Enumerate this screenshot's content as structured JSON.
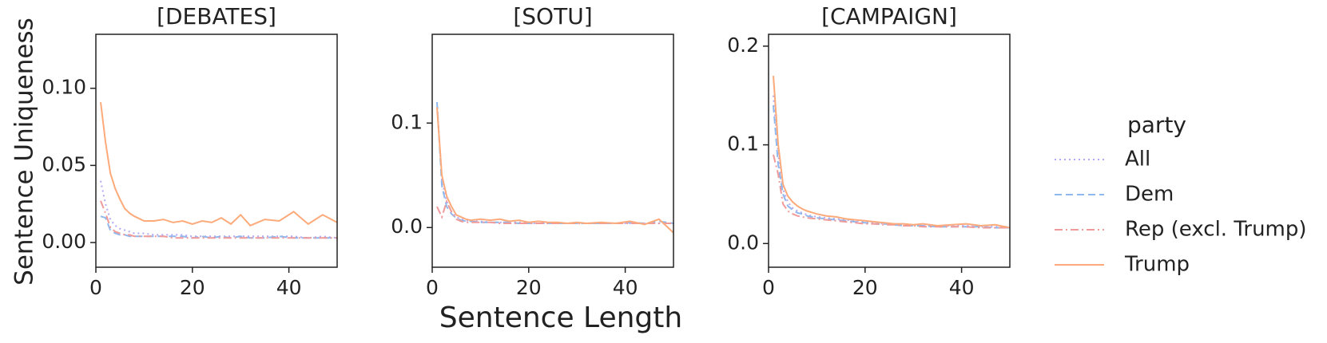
{
  "figure": {
    "xlabel": "Sentence Length",
    "ylabel": "Sentence Uniqueness",
    "legend_title": "party"
  },
  "chart_data": [
    {
      "type": "line",
      "title": "[DEBATES]",
      "x": [
        1,
        2,
        3,
        4,
        5,
        6,
        7,
        8,
        10,
        12,
        14,
        16,
        18,
        20,
        22,
        24,
        26,
        28,
        30,
        32,
        35,
        38,
        41,
        44,
        47,
        50
      ],
      "xlim": [
        0,
        50
      ],
      "xticks": [
        0,
        20,
        40
      ],
      "ylim": [
        -0.016,
        0.135
      ],
      "yticks": [
        {
          "value": 0,
          "label": "0.00"
        },
        {
          "value": 0.05,
          "label": "0.05"
        },
        {
          "value": 0.1,
          "label": "0.10"
        }
      ],
      "series": [
        {
          "name": "All",
          "color": "#b4a7f5",
          "dash": "dotted",
          "values": [
            0.04,
            0.025,
            0.015,
            0.011,
            0.009,
            0.008,
            0.007,
            0.006,
            0.006,
            0.005,
            0.005,
            0.005,
            0.005,
            0.004,
            0.004,
            0.004,
            0.004,
            0.004,
            0.004,
            0.004,
            0.004,
            0.004,
            0.004,
            0.003,
            0.004,
            0.003
          ]
        },
        {
          "name": "Dem",
          "color": "#8fb8ee",
          "dash": "dashed",
          "values": [
            0.017,
            0.016,
            0.008,
            0.006,
            0.005,
            0.005,
            0.004,
            0.004,
            0.004,
            0.004,
            0.004,
            0.004,
            0.004,
            0.003,
            0.004,
            0.003,
            0.004,
            0.003,
            0.004,
            0.003,
            0.003,
            0.004,
            0.003,
            0.003,
            0.003,
            0.003
          ]
        },
        {
          "name": "Rep (excl. Trump)",
          "color": "#f09a9a",
          "dash": "dashdot",
          "values": [
            0.027,
            0.019,
            0.01,
            0.007,
            0.006,
            0.005,
            0.005,
            0.004,
            0.004,
            0.004,
            0.004,
            0.003,
            0.003,
            0.003,
            0.003,
            0.003,
            0.003,
            0.003,
            0.003,
            0.003,
            0.003,
            0.003,
            0.003,
            0.003,
            0.003,
            0.003
          ]
        },
        {
          "name": "Trump",
          "color": "#fdaa7a",
          "dash": "solid",
          "values": [
            0.091,
            0.065,
            0.045,
            0.035,
            0.028,
            0.022,
            0.019,
            0.017,
            0.014,
            0.014,
            0.015,
            0.013,
            0.014,
            0.012,
            0.014,
            0.013,
            0.016,
            0.012,
            0.018,
            0.011,
            0.015,
            0.014,
            0.02,
            0.012,
            0.018,
            0.013
          ]
        }
      ]
    },
    {
      "type": "line",
      "title": "[SOTU]",
      "x": [
        1,
        2,
        3,
        4,
        5,
        6,
        7,
        8,
        10,
        12,
        14,
        16,
        18,
        20,
        22,
        24,
        26,
        28,
        30,
        32,
        35,
        38,
        41,
        44,
        47,
        50
      ],
      "xlim": [
        0,
        50
      ],
      "xticks": [
        0,
        20,
        40
      ],
      "ylim": [
        -0.038,
        0.185
      ],
      "yticks": [
        {
          "value": 0,
          "label": "0.0"
        },
        0.1
      ],
      "series": [
        {
          "name": "All",
          "color": "#b4a7f5",
          "dash": "dotted",
          "values": [
            0.12,
            0.045,
            0.025,
            0.015,
            0.01,
            0.008,
            0.007,
            0.006,
            0.006,
            0.005,
            0.005,
            0.005,
            0.005,
            0.004,
            0.004,
            0.004,
            0.004,
            0.004,
            0.004,
            0.004,
            0.004,
            0.004,
            0.004,
            0.004,
            0.004,
            0.004
          ]
        },
        {
          "name": "Dem",
          "color": "#8fb8ee",
          "dash": "dashed",
          "values": [
            0.12,
            0.04,
            0.02,
            0.013,
            0.009,
            0.007,
            0.006,
            0.006,
            0.005,
            0.005,
            0.005,
            0.005,
            0.004,
            0.004,
            0.004,
            0.004,
            0.004,
            0.004,
            0.004,
            0.004,
            0.004,
            0.004,
            0.005,
            0.004,
            0.006,
            0.004
          ]
        },
        {
          "name": "Rep (excl. Trump)",
          "color": "#f09a9a",
          "dash": "dashdot",
          "values": [
            0.02,
            0.01,
            0.025,
            0.015,
            0.008,
            0.006,
            0.005,
            0.005,
            0.005,
            0.005,
            0.004,
            0.004,
            0.004,
            0.004,
            0.004,
            0.004,
            0.004,
            0.004,
            0.004,
            0.004,
            0.004,
            0.004,
            0.004,
            0.004,
            0.004,
            0.004
          ]
        },
        {
          "name": "Trump",
          "color": "#fdaa7a",
          "dash": "solid",
          "values": [
            0.115,
            0.05,
            0.03,
            0.02,
            0.012,
            0.01,
            0.008,
            0.007,
            0.008,
            0.007,
            0.008,
            0.006,
            0.007,
            0.005,
            0.006,
            0.005,
            0.005,
            0.004,
            0.005,
            0.004,
            0.005,
            0.004,
            0.006,
            0.003,
            0.008,
            -0.005
          ]
        }
      ]
    },
    {
      "type": "line",
      "title": "[CAMPAIGN]",
      "x": [
        1,
        2,
        3,
        4,
        5,
        6,
        7,
        8,
        10,
        12,
        14,
        16,
        18,
        20,
        22,
        24,
        26,
        28,
        30,
        32,
        35,
        38,
        41,
        44,
        47,
        50
      ],
      "xlim": [
        0,
        50
      ],
      "xticks": [
        0,
        20,
        40
      ],
      "ylim": [
        -0.024,
        0.212
      ],
      "yticks": [
        {
          "value": 0,
          "label": "0.0"
        },
        0.1,
        0.2
      ],
      "series": [
        {
          "name": "All",
          "color": "#b4a7f5",
          "dash": "dotted",
          "values": [
            0.15,
            0.09,
            0.055,
            0.042,
            0.036,
            0.033,
            0.031,
            0.029,
            0.027,
            0.026,
            0.025,
            0.024,
            0.023,
            0.022,
            0.021,
            0.02,
            0.02,
            0.019,
            0.019,
            0.018,
            0.018,
            0.018,
            0.018,
            0.017,
            0.017,
            0.017
          ]
        },
        {
          "name": "Dem",
          "color": "#8fb8ee",
          "dash": "dashed",
          "values": [
            0.14,
            0.08,
            0.05,
            0.038,
            0.034,
            0.031,
            0.03,
            0.028,
            0.026,
            0.025,
            0.024,
            0.023,
            0.022,
            0.021,
            0.02,
            0.02,
            0.019,
            0.018,
            0.018,
            0.018,
            0.017,
            0.017,
            0.017,
            0.017,
            0.016,
            0.016
          ]
        },
        {
          "name": "Rep (excl. Trump)",
          "color": "#f09a9a",
          "dash": "dashdot",
          "values": [
            0.09,
            0.07,
            0.04,
            0.033,
            0.03,
            0.028,
            0.027,
            0.026,
            0.025,
            0.024,
            0.023,
            0.022,
            0.021,
            0.02,
            0.02,
            0.019,
            0.019,
            0.018,
            0.018,
            0.017,
            0.017,
            0.017,
            0.017,
            0.016,
            0.016,
            0.016
          ]
        },
        {
          "name": "Trump",
          "color": "#fdaa7a",
          "dash": "solid",
          "values": [
            0.17,
            0.1,
            0.06,
            0.048,
            0.042,
            0.038,
            0.035,
            0.033,
            0.03,
            0.028,
            0.027,
            0.025,
            0.024,
            0.023,
            0.022,
            0.021,
            0.02,
            0.02,
            0.019,
            0.02,
            0.018,
            0.019,
            0.02,
            0.018,
            0.019,
            0.016
          ]
        }
      ]
    }
  ]
}
